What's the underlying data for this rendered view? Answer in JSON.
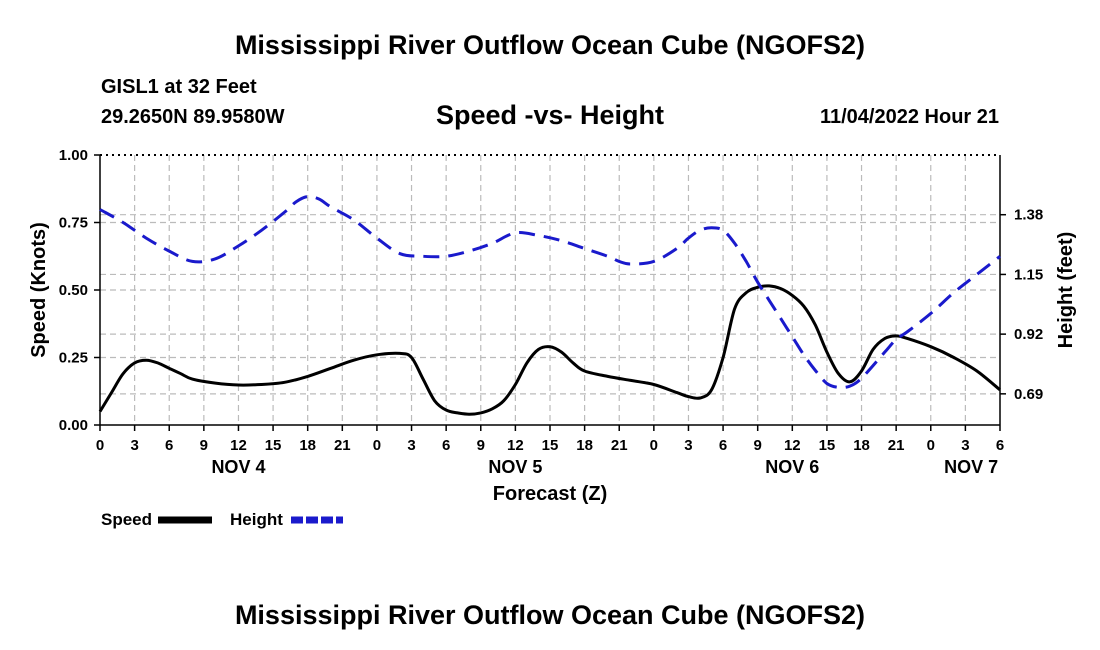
{
  "header": {
    "title": "Mississippi River Outflow Ocean Cube (NGOFS2)",
    "station": "GISL1 at 32 Feet",
    "coords": "29.2650N  89.9580W",
    "subtitle": "Speed -vs- Height",
    "datetime": "11/04/2022 Hour 21"
  },
  "footer": {
    "title": "Mississippi River Outflow Ocean Cube (NGOFS2)"
  },
  "colors": {
    "speed": "#000000",
    "height": "#1a1acc",
    "grid": "#bbbbbb"
  },
  "chart_data": {
    "type": "line",
    "xlabel": "Forecast (Z)",
    "ylabel": "Speed (Knots)",
    "y2label": "Height (feet)",
    "x_unit": "hours since NOV 4 00Z",
    "xlim": [
      0,
      78
    ],
    "ylim": [
      0,
      1.0
    ],
    "y2lim": [
      0.57,
      1.61
    ],
    "x_ticks": [
      {
        "x": 0,
        "label": "0"
      },
      {
        "x": 3,
        "label": "3"
      },
      {
        "x": 6,
        "label": "6"
      },
      {
        "x": 9,
        "label": "9"
      },
      {
        "x": 12,
        "label": "12"
      },
      {
        "x": 15,
        "label": "15"
      },
      {
        "x": 18,
        "label": "18"
      },
      {
        "x": 21,
        "label": "21"
      },
      {
        "x": 24,
        "label": "0"
      },
      {
        "x": 27,
        "label": "3"
      },
      {
        "x": 30,
        "label": "6"
      },
      {
        "x": 33,
        "label": "9"
      },
      {
        "x": 36,
        "label": "12"
      },
      {
        "x": 39,
        "label": "15"
      },
      {
        "x": 42,
        "label": "18"
      },
      {
        "x": 45,
        "label": "21"
      },
      {
        "x": 48,
        "label": "0"
      },
      {
        "x": 51,
        "label": "3"
      },
      {
        "x": 54,
        "label": "6"
      },
      {
        "x": 57,
        "label": "9"
      },
      {
        "x": 60,
        "label": "12"
      },
      {
        "x": 63,
        "label": "15"
      },
      {
        "x": 66,
        "label": "18"
      },
      {
        "x": 69,
        "label": "21"
      },
      {
        "x": 72,
        "label": "0"
      },
      {
        "x": 75,
        "label": "3"
      },
      {
        "x": 78,
        "label": "6"
      }
    ],
    "day_labels": [
      {
        "x": 12,
        "label": "NOV 4"
      },
      {
        "x": 36,
        "label": "NOV 5"
      },
      {
        "x": 60,
        "label": "NOV 6"
      },
      {
        "x": 75.5,
        "label": "NOV 7"
      }
    ],
    "y_ticks": [
      {
        "y": 0.0,
        "label": "0.00"
      },
      {
        "y": 0.25,
        "label": "0.25"
      },
      {
        "y": 0.5,
        "label": "0.50"
      },
      {
        "y": 0.75,
        "label": "0.75"
      },
      {
        "y": 1.0,
        "label": "1.00"
      }
    ],
    "y2_ticks": [
      {
        "y": 0.69,
        "label": "0.69"
      },
      {
        "y": 0.92,
        "label": "0.92"
      },
      {
        "y": 1.15,
        "label": "1.15"
      },
      {
        "y": 1.38,
        "label": "1.38"
      }
    ],
    "series": [
      {
        "name": "Speed",
        "axis": "left",
        "style": "solid",
        "x": [
          0,
          1,
          2,
          3,
          4,
          5,
          6,
          7,
          8,
          10,
          12,
          14,
          16,
          18,
          20,
          22,
          24,
          26,
          27,
          28,
          29,
          30,
          31,
          32,
          33,
          34,
          35,
          36,
          37,
          38,
          39,
          40,
          41,
          42,
          44,
          46,
          48,
          50,
          51,
          52,
          53,
          54,
          55,
          56,
          57,
          58,
          59,
          60,
          61,
          62,
          63,
          64,
          65,
          66,
          67,
          68,
          69,
          70,
          72,
          74,
          76,
          78
        ],
        "y": [
          0.05,
          0.12,
          0.19,
          0.23,
          0.24,
          0.23,
          0.21,
          0.19,
          0.17,
          0.155,
          0.148,
          0.15,
          0.158,
          0.18,
          0.21,
          0.24,
          0.26,
          0.265,
          0.25,
          0.17,
          0.09,
          0.055,
          0.045,
          0.04,
          0.045,
          0.06,
          0.09,
          0.15,
          0.23,
          0.28,
          0.29,
          0.27,
          0.23,
          0.2,
          0.18,
          0.165,
          0.15,
          0.12,
          0.105,
          0.1,
          0.13,
          0.25,
          0.43,
          0.49,
          0.51,
          0.515,
          0.505,
          0.48,
          0.44,
          0.37,
          0.27,
          0.19,
          0.16,
          0.2,
          0.28,
          0.32,
          0.33,
          0.32,
          0.29,
          0.25,
          0.2,
          0.13
        ]
      },
      {
        "name": "Height",
        "axis": "right",
        "style": "dashed",
        "x": [
          0,
          2,
          4,
          6,
          8,
          10,
          12,
          14,
          16,
          17,
          18,
          19,
          20,
          22,
          24,
          26,
          28,
          30,
          32,
          34,
          36,
          38,
          40,
          42,
          44,
          45,
          46,
          48,
          50,
          51,
          52,
          53,
          54,
          55,
          56,
          57,
          58,
          59,
          60,
          61,
          62,
          63,
          64,
          65,
          66,
          68,
          69,
          70,
          72,
          74,
          76,
          78
        ],
        "y": [
          1.4,
          1.35,
          1.29,
          1.24,
          1.2,
          1.21,
          1.26,
          1.32,
          1.39,
          1.43,
          1.45,
          1.44,
          1.41,
          1.36,
          1.29,
          1.23,
          1.22,
          1.22,
          1.24,
          1.27,
          1.31,
          1.3,
          1.28,
          1.25,
          1.22,
          1.2,
          1.19,
          1.2,
          1.25,
          1.29,
          1.32,
          1.33,
          1.32,
          1.27,
          1.2,
          1.12,
          1.05,
          0.98,
          0.91,
          0.84,
          0.78,
          0.73,
          0.715,
          0.72,
          0.75,
          0.85,
          0.9,
          0.93,
          1.0,
          1.08,
          1.15,
          1.22
        ]
      }
    ],
    "legend": [
      {
        "label": "Speed",
        "series": "Speed"
      },
      {
        "label": "Height",
        "series": "Height"
      }
    ]
  }
}
